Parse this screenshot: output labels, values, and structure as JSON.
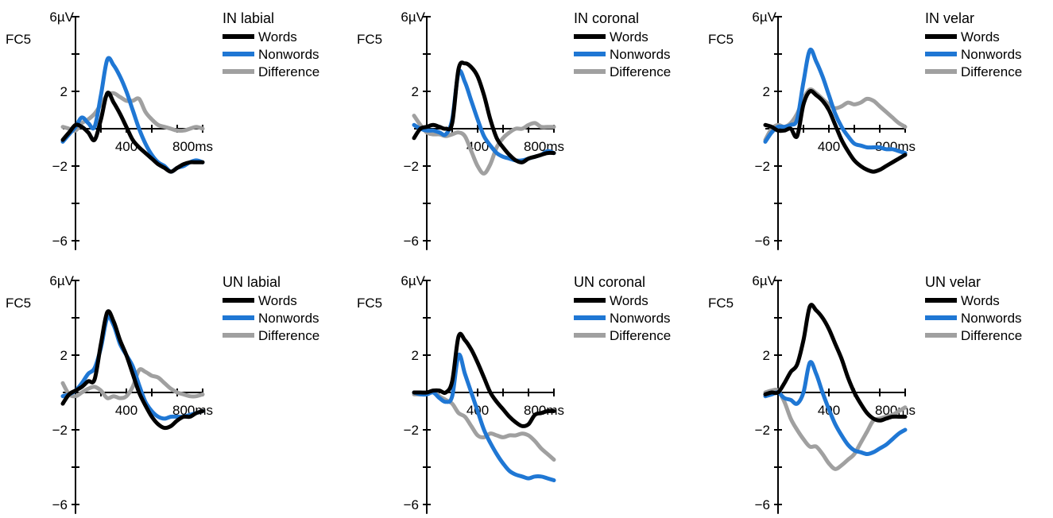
{
  "figure": {
    "type": "multi-panel ERP line charts",
    "background": "#ffffff"
  },
  "colors": {
    "Words": "#000000",
    "Nonwords": "#1f77d4",
    "Difference": "#a0a0a0"
  },
  "chart_data": [
    {
      "type": "line",
      "title": "IN labial",
      "channel_label": "FC5",
      "y_top_label": "6µV",
      "x_tick_labels": [
        "400",
        "800ms"
      ],
      "y_tick_labels": [
        "2",
        "−2",
        "−6"
      ],
      "xlim": [
        -100,
        1000
      ],
      "ylim": [
        -6.5,
        6
      ],
      "x": [
        -100,
        -50,
        0,
        50,
        100,
        150,
        200,
        250,
        300,
        350,
        400,
        450,
        500,
        550,
        600,
        650,
        700,
        750,
        800,
        850,
        900,
        950,
        1000
      ],
      "series": [
        {
          "name": "Words",
          "values": [
            -0.6,
            -0.2,
            0.2,
            0.1,
            -0.2,
            -0.6,
            0.5,
            1.9,
            1.4,
            0.8,
            0.1,
            -0.6,
            -1.0,
            -1.3,
            -1.6,
            -1.9,
            -2.1,
            -2.3,
            -2.1,
            -1.9,
            -1.8,
            -1.8,
            -1.8
          ]
        },
        {
          "name": "Nonwords",
          "values": [
            -0.7,
            -0.3,
            0.1,
            0.6,
            0.3,
            0.1,
            1.8,
            3.7,
            3.4,
            2.8,
            2.0,
            1.0,
            0.0,
            -0.8,
            -1.4,
            -1.8,
            -2.0,
            -2.3,
            -2.1,
            -2.0,
            -1.8,
            -1.7,
            -1.8
          ]
        },
        {
          "name": "Difference",
          "values": [
            0.1,
            0.0,
            -0.1,
            0.3,
            0.5,
            0.8,
            1.3,
            1.8,
            1.9,
            1.7,
            1.5,
            1.5,
            1.6,
            0.9,
            0.5,
            0.2,
            0.1,
            0.0,
            -0.1,
            -0.1,
            0.0,
            0.1,
            0.0
          ]
        }
      ]
    },
    {
      "type": "line",
      "title": "IN coronal",
      "channel_label": "FC5",
      "y_top_label": "6µV",
      "x_tick_labels": [
        "400",
        "800ms"
      ],
      "y_tick_labels": [
        "2",
        "−2",
        "−6"
      ],
      "xlim": [
        -100,
        1000
      ],
      "ylim": [
        -6.5,
        6
      ],
      "x": [
        -100,
        -50,
        0,
        50,
        100,
        150,
        200,
        250,
        300,
        350,
        400,
        450,
        500,
        550,
        600,
        650,
        700,
        750,
        800,
        850,
        900,
        950,
        1000
      ],
      "series": [
        {
          "name": "Words",
          "values": [
            -0.5,
            0.0,
            0.1,
            0.2,
            0.1,
            0.0,
            0.3,
            3.2,
            3.5,
            3.3,
            2.8,
            1.8,
            0.5,
            -0.5,
            -1.0,
            -1.4,
            -1.7,
            -1.8,
            -1.6,
            -1.5,
            -1.4,
            -1.3,
            -1.3
          ]
        },
        {
          "name": "Nonwords",
          "values": [
            0.2,
            0.0,
            -0.1,
            -0.1,
            -0.2,
            -0.3,
            0.5,
            3.0,
            2.5,
            1.5,
            0.5,
            -0.4,
            -0.9,
            -1.3,
            -1.5,
            -1.6,
            -1.7,
            -1.7,
            -1.6,
            -1.5,
            -1.4,
            -1.2,
            -1.3
          ]
        },
        {
          "name": "Difference",
          "values": [
            0.7,
            0.2,
            -0.2,
            -0.3,
            -0.3,
            -0.4,
            -0.3,
            -0.2,
            -0.4,
            -1.2,
            -2.0,
            -2.4,
            -1.9,
            -1.0,
            -0.5,
            -0.2,
            0.0,
            0.0,
            0.2,
            0.3,
            0.1,
            0.1,
            0.1
          ]
        }
      ]
    },
    {
      "type": "line",
      "title": "IN velar",
      "channel_label": "FC5",
      "y_top_label": "6µV",
      "x_tick_labels": [
        "400",
        "800ms"
      ],
      "y_tick_labels": [
        "2",
        "−2",
        "−6"
      ],
      "xlim": [
        -100,
        1000
      ],
      "ylim": [
        -6.5,
        6
      ],
      "x": [
        -100,
        -50,
        0,
        50,
        100,
        150,
        200,
        250,
        300,
        350,
        400,
        450,
        500,
        550,
        600,
        650,
        700,
        750,
        800,
        850,
        900,
        950,
        1000
      ],
      "series": [
        {
          "name": "Words",
          "values": [
            0.2,
            0.1,
            -0.1,
            -0.1,
            0.0,
            -0.4,
            1.3,
            2.0,
            1.8,
            1.5,
            1.0,
            0.2,
            -0.6,
            -1.2,
            -1.7,
            -2.0,
            -2.2,
            -2.3,
            -2.2,
            -2.0,
            -1.8,
            -1.6,
            -1.4
          ]
        },
        {
          "name": "Nonwords",
          "values": [
            -0.7,
            -0.2,
            0.1,
            0.1,
            0.2,
            0.5,
            2.5,
            4.2,
            3.6,
            2.8,
            1.8,
            0.8,
            0.1,
            -0.4,
            -0.8,
            -0.9,
            -1.0,
            -1.0,
            -1.0,
            -1.1,
            -1.1,
            -1.2,
            -1.3
          ]
        },
        {
          "name": "Difference",
          "values": [
            -0.6,
            0.0,
            0.2,
            0.1,
            0.3,
            0.8,
            1.6,
            2.1,
            1.9,
            1.6,
            1.3,
            1.1,
            1.2,
            1.4,
            1.3,
            1.4,
            1.6,
            1.5,
            1.2,
            0.9,
            0.6,
            0.3,
            0.1
          ]
        }
      ]
    },
    {
      "type": "line",
      "title": "UN labial",
      "channel_label": "FC5",
      "y_top_label": "6µV",
      "x_tick_labels": [
        "400",
        "800ms"
      ],
      "y_tick_labels": [
        "2",
        "−2",
        "−6"
      ],
      "xlim": [
        -100,
        1000
      ],
      "ylim": [
        -6.5,
        6
      ],
      "x": [
        -100,
        -50,
        0,
        50,
        100,
        150,
        200,
        250,
        300,
        350,
        400,
        450,
        500,
        550,
        600,
        650,
        700,
        750,
        800,
        850,
        900,
        950,
        1000
      ],
      "series": [
        {
          "name": "Words",
          "values": [
            -0.6,
            -0.1,
            0.1,
            0.3,
            0.6,
            0.7,
            2.6,
            4.3,
            3.8,
            2.8,
            2.0,
            1.0,
            0.0,
            -0.7,
            -1.3,
            -1.7,
            -1.9,
            -1.8,
            -1.5,
            -1.3,
            -1.3,
            -1.1,
            -1.0
          ]
        },
        {
          "name": "Nonwords",
          "values": [
            -0.2,
            -0.1,
            0.1,
            0.5,
            1.0,
            1.3,
            2.4,
            4.0,
            3.6,
            2.6,
            2.0,
            1.4,
            0.4,
            -0.5,
            -1.0,
            -1.3,
            -1.4,
            -1.3,
            -1.3,
            -1.3,
            -1.2,
            -1.1,
            -1.0
          ]
        },
        {
          "name": "Difference",
          "values": [
            0.5,
            -0.1,
            -0.2,
            0.0,
            0.2,
            0.3,
            0.1,
            -0.3,
            -0.2,
            -0.3,
            -0.2,
            0.3,
            1.2,
            1.1,
            0.9,
            0.8,
            0.5,
            0.2,
            0.0,
            -0.1,
            -0.2,
            -0.2,
            -0.1
          ]
        }
      ]
    },
    {
      "type": "line",
      "title": "UN coronal",
      "channel_label": "FC5",
      "y_top_label": "6µV",
      "x_tick_labels": [
        "400",
        "800ms"
      ],
      "y_tick_labels": [
        "2",
        "−2",
        "−6"
      ],
      "xlim": [
        -100,
        1000
      ],
      "ylim": [
        -6.5,
        6
      ],
      "x": [
        -100,
        -50,
        0,
        50,
        100,
        150,
        200,
        250,
        300,
        350,
        400,
        450,
        500,
        550,
        600,
        650,
        700,
        750,
        800,
        850,
        900,
        950,
        1000
      ],
      "series": [
        {
          "name": "Words",
          "values": [
            0.0,
            0.0,
            0.0,
            0.1,
            0.1,
            0.0,
            0.6,
            3.0,
            2.8,
            2.3,
            1.6,
            0.8,
            0.0,
            -0.5,
            -0.9,
            -1.3,
            -1.6,
            -1.8,
            -1.7,
            -1.2,
            -1.1,
            -1.0,
            -1.0
          ]
        },
        {
          "name": "Nonwords",
          "values": [
            0.0,
            -0.1,
            -0.1,
            0.0,
            -0.3,
            -0.5,
            -0.2,
            2.0,
            1.0,
            0.0,
            -1.0,
            -2.0,
            -2.7,
            -3.3,
            -3.8,
            -4.2,
            -4.4,
            -4.5,
            -4.6,
            -4.5,
            -4.5,
            -4.6,
            -4.7
          ]
        },
        {
          "name": "Difference",
          "values": [
            -0.1,
            -0.1,
            -0.1,
            0.1,
            -0.2,
            -0.4,
            -0.6,
            -1.1,
            -1.3,
            -1.8,
            -2.3,
            -2.4,
            -2.2,
            -2.3,
            -2.4,
            -2.3,
            -2.3,
            -2.2,
            -2.3,
            -2.6,
            -3.0,
            -3.3,
            -3.6
          ]
        }
      ]
    },
    {
      "type": "line",
      "title": "UN velar",
      "channel_label": "FC5",
      "y_top_label": "6µV",
      "x_tick_labels": [
        "400",
        "800ms"
      ],
      "y_tick_labels": [
        "2",
        "−2",
        "−6"
      ],
      "xlim": [
        -100,
        1000
      ],
      "ylim": [
        -6.5,
        6
      ],
      "x": [
        -100,
        -50,
        0,
        50,
        100,
        150,
        200,
        250,
        300,
        350,
        400,
        450,
        500,
        550,
        600,
        650,
        700,
        750,
        800,
        850,
        900,
        950,
        1000
      ],
      "series": [
        {
          "name": "Words",
          "values": [
            -0.1,
            0.0,
            0.0,
            0.5,
            1.1,
            1.5,
            2.8,
            4.6,
            4.4,
            4.0,
            3.4,
            2.6,
            1.8,
            0.8,
            0.0,
            -0.6,
            -1.1,
            -1.4,
            -1.5,
            -1.4,
            -1.3,
            -1.3,
            -1.3
          ]
        },
        {
          "name": "Nonwords",
          "values": [
            -0.2,
            -0.1,
            0.0,
            -0.3,
            -0.4,
            -0.6,
            0.0,
            1.6,
            1.0,
            0.0,
            -0.9,
            -1.7,
            -2.3,
            -2.8,
            -3.1,
            -3.2,
            -3.3,
            -3.2,
            -3.0,
            -2.8,
            -2.5,
            -2.2,
            -2.0
          ]
        },
        {
          "name": "Difference",
          "values": [
            0.0,
            0.1,
            0.1,
            -0.5,
            -1.4,
            -2.0,
            -2.5,
            -2.9,
            -2.9,
            -3.3,
            -3.8,
            -4.1,
            -3.9,
            -3.6,
            -3.3,
            -2.7,
            -2.1,
            -1.5,
            -1.4,
            -1.3,
            -1.2,
            -1.0,
            -0.8
          ]
        }
      ]
    }
  ]
}
